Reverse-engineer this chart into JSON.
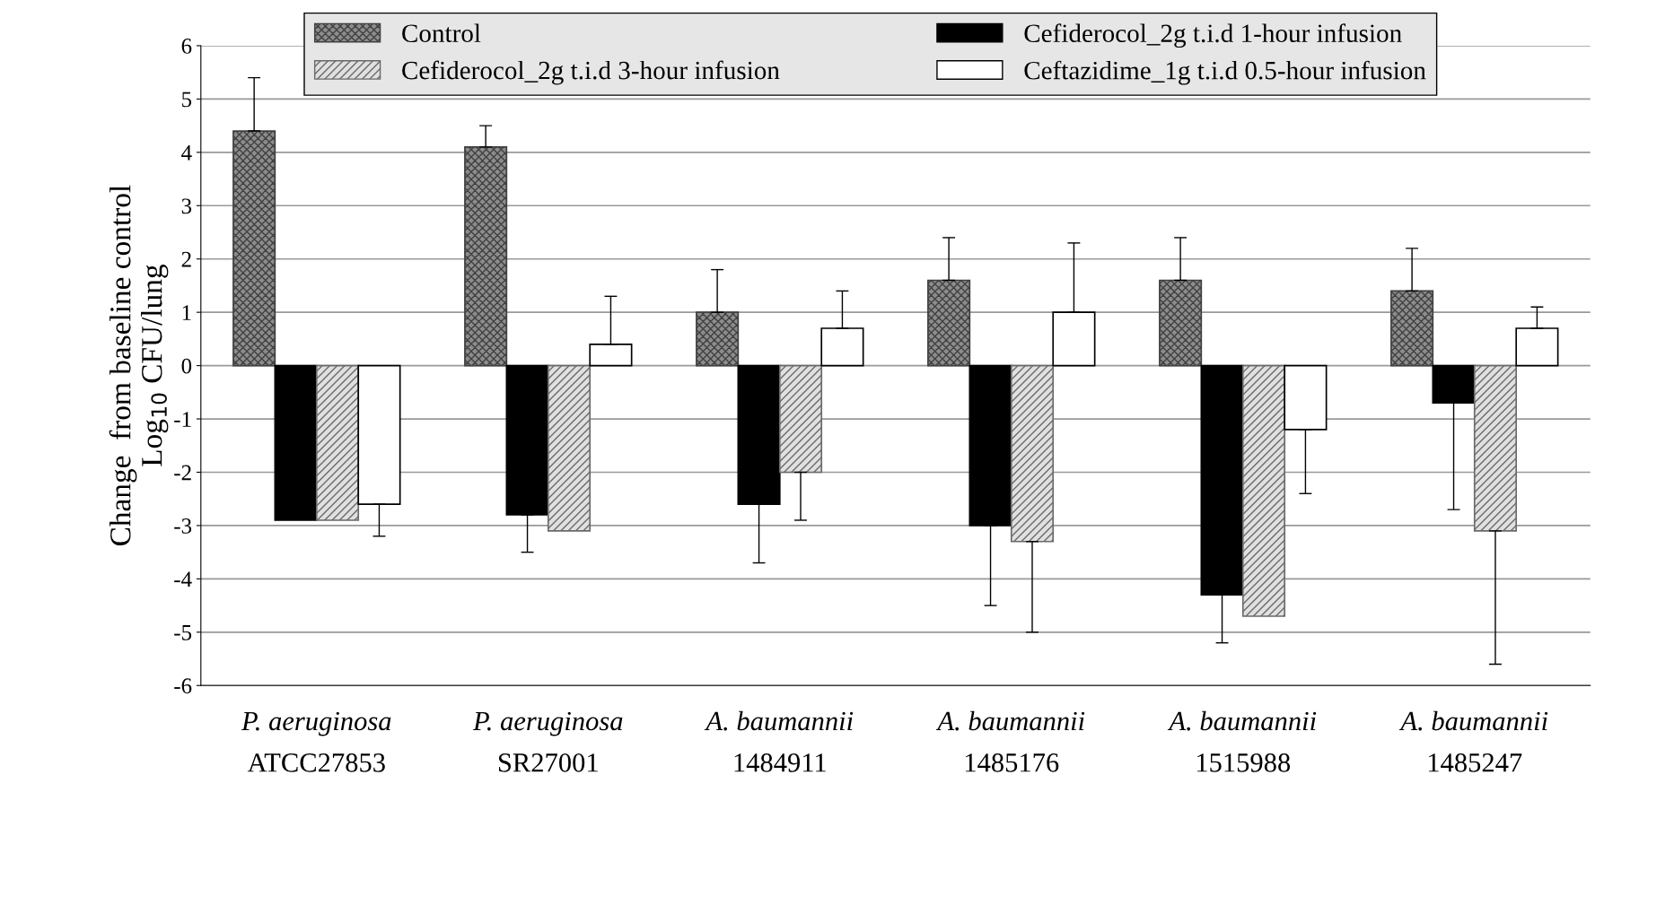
{
  "chart_data": {
    "type": "bar",
    "ylabel": "Change  from baseline control\nLog$_{10}$ CFU/lung",
    "categories": [
      "P. aeruginosa\nATCC27853",
      "P. aeruginosa\nSR27001",
      "A. baumannii\n1484911",
      "A. baumannii\n1485176",
      "A. baumannii\n1515988",
      "A. baumannii\n1485247"
    ],
    "series": [
      {
        "name": "Control",
        "color": "#404040",
        "values": [
          4.4,
          4.1,
          1.0,
          1.6,
          1.6,
          1.4
        ],
        "errors": [
          [
            4.4,
            5.4
          ],
          [
            4.1,
            4.5
          ],
          [
            1.0,
            1.8
          ],
          [
            1.6,
            2.4
          ],
          [
            1.6,
            2.4
          ],
          [
            1.4,
            2.2
          ]
        ]
      },
      {
        "name": "Cefiderocol_2g t.i.d 1-hour infusion",
        "color": "#000000",
        "values": [
          -2.9,
          -2.8,
          -2.6,
          -3.0,
          -4.3,
          -0.7
        ],
        "errors": [
          null,
          [
            -3.5,
            -2.8
          ],
          [
            -3.7,
            -2.6
          ],
          [
            -4.5,
            -3.0
          ],
          [
            -5.2,
            -4.3
          ],
          [
            -2.7,
            -0.7
          ]
        ]
      },
      {
        "name": "Cefiderocol_2g t.i.d 3-hour infusion",
        "color": "#6a6a6a",
        "values": [
          -2.9,
          -3.1,
          -2.0,
          -3.3,
          -4.7,
          -3.1
        ],
        "errors": [
          null,
          null,
          [
            -2.9,
            -2.0
          ],
          [
            -5.0,
            -3.3
          ],
          null,
          [
            -5.6,
            -3.1
          ]
        ]
      },
      {
        "name": "Ceftazidime_1g t.i.d 0.5-hour infusion",
        "color": "#ffffff",
        "values": [
          -2.6,
          0.4,
          0.7,
          1.0,
          -1.2,
          0.7
        ],
        "errors": [
          [
            -3.2,
            -2.6
          ],
          [
            0.4,
            1.3
          ],
          [
            0.7,
            1.4
          ],
          [
            1.0,
            2.3
          ],
          [
            -2.4,
            -1.2
          ],
          [
            0.7,
            1.1
          ]
        ]
      }
    ],
    "ylim": [
      -6,
      6
    ],
    "yticks": [
      -6,
      -5,
      -4,
      -3,
      -2,
      -1,
      0,
      1,
      2,
      3,
      4,
      5,
      6
    ],
    "grid": "y",
    "legend": "top"
  }
}
